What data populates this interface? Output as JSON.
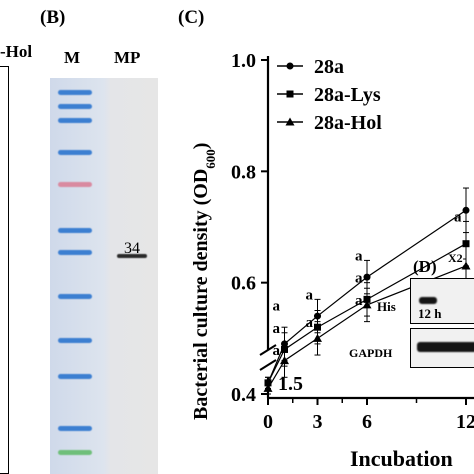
{
  "panels": {
    "a_partial": {
      "label_fragment": "-Hol"
    },
    "b": {
      "label": "(B)",
      "lanes": [
        "M",
        "MP"
      ],
      "band_size": "34"
    },
    "c": {
      "label": "(C)"
    },
    "d": {
      "label": "(D)",
      "his_label": "His",
      "gapdh_label": "GAPDH",
      "time_label": "12 h",
      "header_fragment": "X2-"
    }
  },
  "chart_data": {
    "type": "line",
    "ylabel": "Bacterial culture density (OD600)",
    "ylabel_main": "Bacterial culture density (OD",
    "ylabel_sub": "600",
    "ylabel_close": ")",
    "xlabel": "Incubation",
    "y_ticks": [
      "0.4",
      "0.6",
      "0.8",
      "1.0"
    ],
    "y_tick_values": [
      0.4,
      0.6,
      0.8,
      1.0
    ],
    "y_break_tick": "1.5",
    "x_ticks": [
      "0",
      "3",
      "6",
      "12"
    ],
    "x_tick_values": [
      0,
      3,
      6,
      12
    ],
    "ylim": [
      0.4,
      1.0
    ],
    "xlim": [
      0,
      12
    ],
    "series": [
      {
        "name": "28a",
        "marker": "circle",
        "x": [
          0,
          1,
          3,
          6,
          12
        ],
        "y": [
          0.42,
          0.49,
          0.54,
          0.61,
          0.73
        ],
        "err": [
          0.01,
          0.03,
          0.03,
          0.03,
          0.04
        ]
      },
      {
        "name": "28a-Lys",
        "marker": "square",
        "x": [
          0,
          1,
          3,
          6,
          12
        ],
        "y": [
          0.42,
          0.48,
          0.52,
          0.57,
          0.67
        ],
        "err": [
          0.01,
          0.03,
          0.03,
          0.03,
          0.04
        ]
      },
      {
        "name": "28a-Hol",
        "marker": "triangle",
        "x": [
          0,
          1,
          3,
          6,
          12
        ],
        "y": [
          0.41,
          0.46,
          0.5,
          0.56,
          0.63
        ],
        "err": [
          0.01,
          0.03,
          0.03,
          0.03,
          0.04
        ]
      }
    ],
    "significance": [
      {
        "text": "a",
        "x": 1,
        "y": 0.55
      },
      {
        "text": "a",
        "x": 1,
        "y": 0.51
      },
      {
        "text": "a",
        "x": 1,
        "y": 0.47
      },
      {
        "text": "a",
        "x": 3,
        "y": 0.57
      },
      {
        "text": "a",
        "x": 3,
        "y": 0.52
      },
      {
        "text": "a",
        "x": 6,
        "y": 0.64
      },
      {
        "text": "a",
        "x": 6,
        "y": 0.6
      },
      {
        "text": "a",
        "x": 6,
        "y": 0.56
      },
      {
        "text": "a",
        "x": 12,
        "y": 0.71
      }
    ]
  }
}
